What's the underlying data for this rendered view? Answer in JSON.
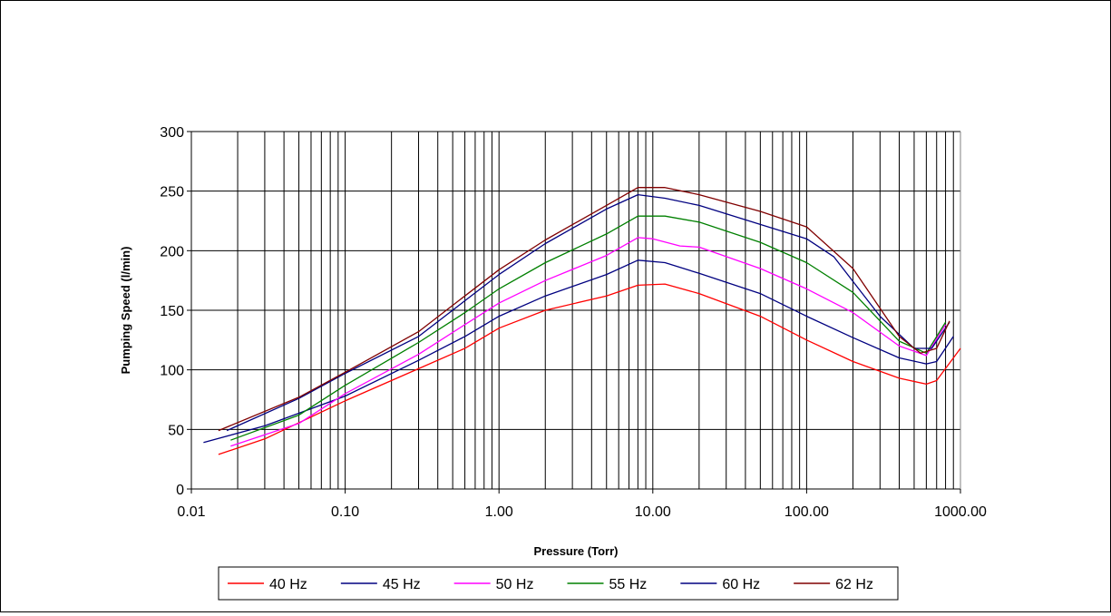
{
  "chart_data": {
    "type": "line",
    "title": "",
    "xlabel": "Pressure (Torr)",
    "ylabel": "Pumping Speed (l/min)",
    "x_scale": "log",
    "xlim": [
      0.01,
      1000
    ],
    "ylim": [
      0,
      300
    ],
    "x_ticks": [
      0.01,
      0.1,
      1,
      10,
      100,
      1000
    ],
    "x_tick_labels": [
      "0.01",
      "0.10",
      "1.00",
      "10.00",
      "100.00",
      "1000.00"
    ],
    "y_ticks": [
      0,
      50,
      100,
      150,
      200,
      250,
      300
    ],
    "y_tick_labels": [
      "0",
      "50",
      "100",
      "150",
      "200",
      "250",
      "300"
    ],
    "grid": true,
    "legend_position": "bottom",
    "series": [
      {
        "name": "40 Hz",
        "color": "#ff0000",
        "points": [
          [
            0.015,
            29
          ],
          [
            0.03,
            42
          ],
          [
            0.1,
            74
          ],
          [
            0.3,
            101
          ],
          [
            0.6,
            118
          ],
          [
            1.0,
            135
          ],
          [
            2,
            150
          ],
          [
            5,
            162
          ],
          [
            8,
            171
          ],
          [
            12,
            172
          ],
          [
            20,
            164
          ],
          [
            50,
            145
          ],
          [
            100,
            125
          ],
          [
            200,
            107
          ],
          [
            400,
            93
          ],
          [
            600,
            88
          ],
          [
            700,
            91
          ],
          [
            1000,
            118
          ]
        ]
      },
      {
        "name": "45 Hz",
        "color": "#000080",
        "points": [
          [
            0.012,
            39
          ],
          [
            0.03,
            53
          ],
          [
            0.1,
            78
          ],
          [
            0.3,
            108
          ],
          [
            0.6,
            128
          ],
          [
            1.0,
            145
          ],
          [
            2,
            162
          ],
          [
            5,
            180
          ],
          [
            8,
            192
          ],
          [
            12,
            190
          ],
          [
            20,
            181
          ],
          [
            50,
            164
          ],
          [
            100,
            145
          ],
          [
            200,
            127
          ],
          [
            400,
            110
          ],
          [
            600,
            105
          ],
          [
            700,
            107
          ],
          [
            900,
            128
          ]
        ]
      },
      {
        "name": "50 Hz",
        "color": "#ff00ff",
        "points": [
          [
            0.018,
            36
          ],
          [
            0.05,
            55
          ],
          [
            0.1,
            80
          ],
          [
            0.3,
            113
          ],
          [
            0.6,
            138
          ],
          [
            1.0,
            156
          ],
          [
            2,
            175
          ],
          [
            5,
            196
          ],
          [
            8,
            211
          ],
          [
            10,
            210
          ],
          [
            15,
            204
          ],
          [
            20,
            203
          ],
          [
            50,
            185
          ],
          [
            100,
            168
          ],
          [
            200,
            148
          ],
          [
            400,
            120
          ],
          [
            600,
            112
          ],
          [
            800,
            138
          ]
        ]
      },
      {
        "name": "55 Hz",
        "color": "#008000",
        "points": [
          [
            0.018,
            41
          ],
          [
            0.05,
            62
          ],
          [
            0.1,
            87
          ],
          [
            0.3,
            123
          ],
          [
            0.6,
            148
          ],
          [
            1.0,
            168
          ],
          [
            2,
            190
          ],
          [
            5,
            214
          ],
          [
            8,
            229
          ],
          [
            12,
            229
          ],
          [
            20,
            224
          ],
          [
            50,
            207
          ],
          [
            100,
            190
          ],
          [
            200,
            165
          ],
          [
            400,
            124
          ],
          [
            600,
            114
          ],
          [
            800,
            140
          ]
        ]
      },
      {
        "name": "60 Hz",
        "color": "#000080",
        "points": [
          [
            0.017,
            49
          ],
          [
            0.05,
            76
          ],
          [
            0.1,
            97
          ],
          [
            0.3,
            128
          ],
          [
            0.6,
            158
          ],
          [
            1.0,
            180
          ],
          [
            2,
            206
          ],
          [
            5,
            235
          ],
          [
            8,
            247
          ],
          [
            12,
            244
          ],
          [
            20,
            238
          ],
          [
            50,
            222
          ],
          [
            100,
            210
          ],
          [
            150,
            195
          ],
          [
            300,
            145
          ],
          [
            500,
            118
          ],
          [
            650,
            118
          ],
          [
            850,
            140
          ]
        ]
      },
      {
        "name": "62 Hz",
        "color": "#800000",
        "points": [
          [
            0.015,
            49
          ],
          [
            0.05,
            77
          ],
          [
            0.1,
            98
          ],
          [
            0.3,
            132
          ],
          [
            0.6,
            162
          ],
          [
            1.0,
            184
          ],
          [
            2,
            209
          ],
          [
            5,
            238
          ],
          [
            8,
            253
          ],
          [
            12,
            253
          ],
          [
            20,
            247
          ],
          [
            50,
            233
          ],
          [
            100,
            220
          ],
          [
            200,
            185
          ],
          [
            400,
            128
          ],
          [
            550,
            114
          ],
          [
            700,
            118
          ],
          [
            850,
            141
          ]
        ]
      }
    ]
  }
}
